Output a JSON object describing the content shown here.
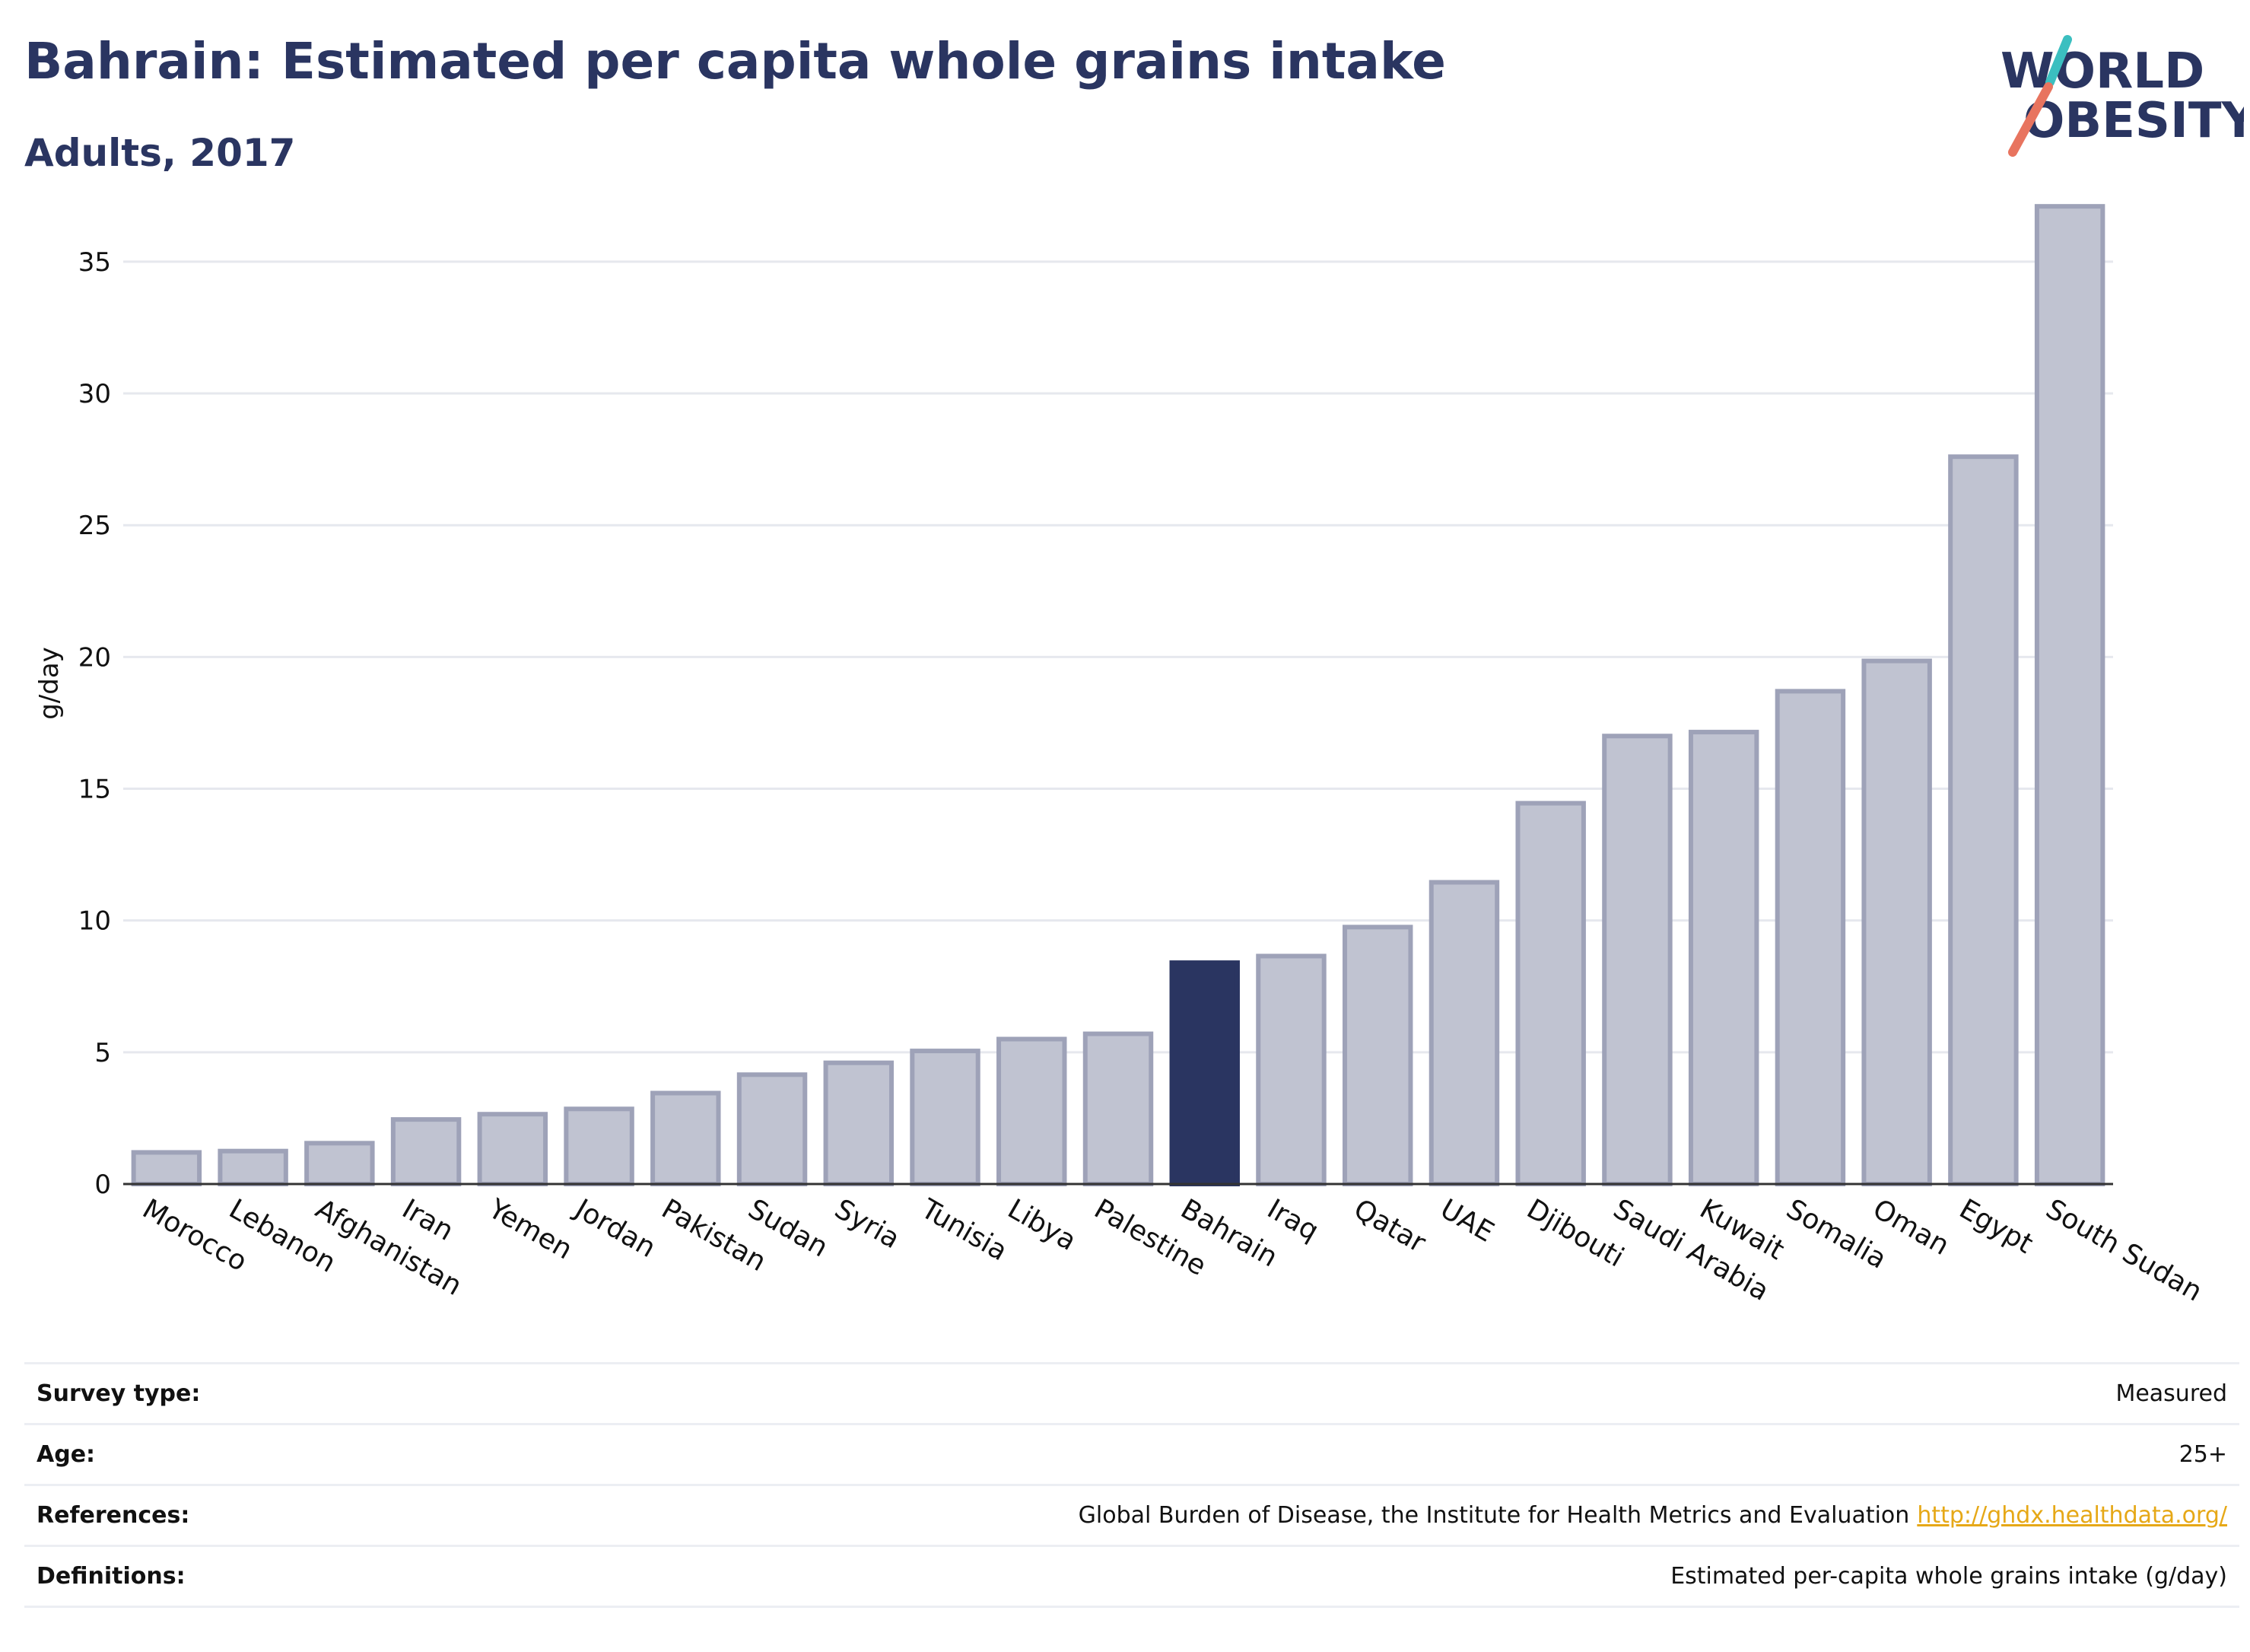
{
  "header": {
    "title": "Bahrain: Estimated per capita whole grains intake",
    "subtitle": "Adults, 2017"
  },
  "logo": {
    "line1": "WORLD",
    "line2": "OBESITY",
    "colors": {
      "text": "#2a3561",
      "slash_teal": "#3bbfc0",
      "slash_coral": "#e8745f"
    }
  },
  "chart_data": {
    "type": "bar",
    "categories": [
      "Morocco",
      "Lebanon",
      "Afghanistan",
      "Iran",
      "Yemen",
      "Jordan",
      "Pakistan",
      "Sudan",
      "Syria",
      "Tunisia",
      "Libya",
      "Palestine",
      "Bahrain",
      "Iraq",
      "Qatar",
      "UAE",
      "Djibouti",
      "Saudi Arabia",
      "Kuwait",
      "Somalia",
      "Oman",
      "Egypt",
      "South Sudan"
    ],
    "values": [
      1.2,
      1.25,
      1.55,
      2.45,
      2.65,
      2.85,
      3.45,
      4.15,
      4.6,
      5.05,
      5.5,
      5.7,
      8.4,
      8.65,
      9.75,
      11.45,
      14.45,
      17.0,
      17.15,
      18.7,
      19.85,
      27.6,
      37.1
    ],
    "highlight": "Bahrain",
    "ylabel": "g/day",
    "xlabel": "",
    "ylim": [
      0,
      38
    ],
    "yticks": [
      0,
      5,
      10,
      15,
      20,
      25,
      30,
      35
    ],
    "grid": true,
    "colors": {
      "bar": "#c0c3d1",
      "bar_edge": "#9ea2b8",
      "highlight": "#2a3561"
    }
  },
  "info": {
    "rows": [
      {
        "label": "Survey type:",
        "value": "Measured",
        "link": ""
      },
      {
        "label": "Age:",
        "value": "25+",
        "link": ""
      },
      {
        "label": "References:",
        "value": "Global Burden of Disease, the Institute for Health Metrics and Evaluation",
        "link": "http://ghdx.healthdata.org/"
      },
      {
        "label": "Definitions:",
        "value": "Estimated per-capita whole grains intake (g/day)",
        "link": ""
      }
    ]
  }
}
